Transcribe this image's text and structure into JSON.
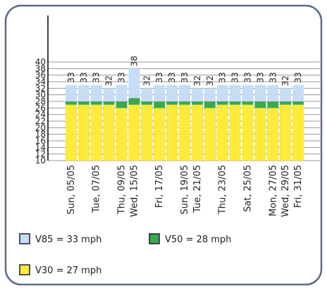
{
  "chart_data": {
    "type": "bar",
    "categories": [
      "Sun, 05/05",
      null,
      "Tue, 07/05",
      null,
      "Thu, 09/05",
      "Wed, 15/05",
      null,
      "Fri, 17/05",
      null,
      "Sun, 19/05",
      "Tue, 21/05",
      null,
      "Thu, 23/05",
      null,
      "Sat, 25/05",
      null,
      "Mon, 27/05",
      "Wed, 29/05",
      "Fri, 31/05"
    ],
    "series": [
      {
        "name": "V85 = 33 mph",
        "color": "#c6ddf6",
        "values": [
          33,
          33,
          33,
          32,
          33,
          38,
          32,
          33,
          33,
          33,
          32,
          32,
          33,
          33,
          33,
          33,
          33,
          32,
          33
        ]
      },
      {
        "name": "V50 = 28 mph",
        "color": "#3ca84a",
        "values": [
          28,
          28,
          28,
          28,
          28,
          29,
          28,
          28,
          28,
          28,
          28,
          28,
          28,
          28,
          28,
          28,
          28,
          28,
          28
        ]
      },
      {
        "name": "V30 = 27 mph",
        "color": "#ffe93b",
        "values": [
          27,
          27,
          27,
          27,
          26,
          27,
          27,
          26,
          27,
          27,
          27,
          26,
          27,
          27,
          27,
          26,
          26,
          27,
          27
        ]
      }
    ],
    "ylim": [
      10,
      40
    ],
    "yticks": [
      10,
      12,
      14,
      16,
      18,
      20,
      22,
      24,
      26,
      28,
      30,
      32,
      34,
      36,
      38,
      40
    ],
    "grid": true
  }
}
